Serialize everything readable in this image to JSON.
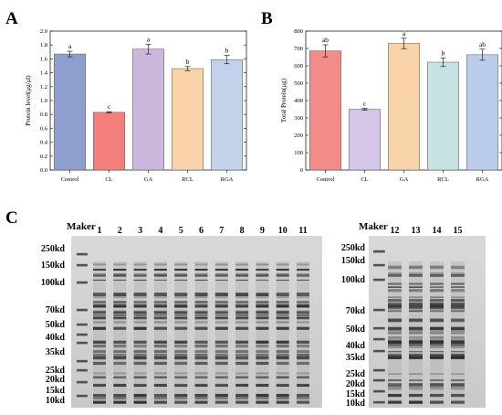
{
  "panels": {
    "A": "A",
    "B": "B",
    "C": "C"
  },
  "chart_data": [
    {
      "type": "bar",
      "panel": "A",
      "ylabel": "Protein level(μg/μl)",
      "ylim": [
        0,
        2.0
      ],
      "yticks": [
        "0.0",
        "0.2",
        "0.4",
        "0.6",
        "0.8",
        "1.0",
        "1.2",
        "1.4",
        "1.6",
        "1.8",
        "2.0"
      ],
      "categories": [
        "Control",
        "CL",
        "GA",
        "RCL",
        "RGA"
      ],
      "values": [
        1.67,
        0.83,
        1.74,
        1.46,
        1.59
      ],
      "errors": [
        0.04,
        0.01,
        0.07,
        0.03,
        0.06
      ],
      "labels": [
        "a",
        "c",
        "a",
        "b",
        "b"
      ],
      "colors": [
        "#8e9fce",
        "#f27f7b",
        "#cbb8dc",
        "#f9d4a8",
        "#c1d2ea"
      ]
    },
    {
      "type": "bar",
      "panel": "B",
      "ylabel": "Total Protein(μg)",
      "ylim": [
        0,
        800
      ],
      "yticks": [
        "0",
        "100",
        "200",
        "300",
        "400",
        "500",
        "600",
        "700",
        "800"
      ],
      "categories": [
        "Control",
        "CL",
        "GA",
        "RCL",
        "RGA"
      ],
      "values": [
        686,
        350,
        729,
        621,
        664
      ],
      "errors": [
        35,
        5,
        30,
        25,
        32
      ],
      "labels": [
        "ab",
        "c",
        "a",
        "b",
        "ab"
      ],
      "colors": [
        "#f38b89",
        "#d3c6e7",
        "#f9d4a9",
        "#c6e2e3",
        "#bccdeb"
      ]
    }
  ],
  "gel": {
    "left": {
      "maker_label": "Maker",
      "lanes": [
        "1",
        "2",
        "3",
        "4",
        "5",
        "6",
        "7",
        "8",
        "9",
        "10",
        "11"
      ],
      "markers": [
        "250kd",
        "150kd",
        "100kd",
        "70kd",
        "50kd",
        "40kd",
        "35kd",
        "25kd",
        "20kd",
        "15kd",
        "10kd"
      ]
    },
    "right": {
      "maker_label": "Maker",
      "lanes": [
        "12",
        "13",
        "14",
        "15"
      ],
      "markers": [
        "250kd",
        "150kd",
        "100kd",
        "70kd",
        "50kd",
        "40kd",
        "35kd",
        "25kd",
        "20kd",
        "15kd",
        "10kd"
      ]
    }
  }
}
